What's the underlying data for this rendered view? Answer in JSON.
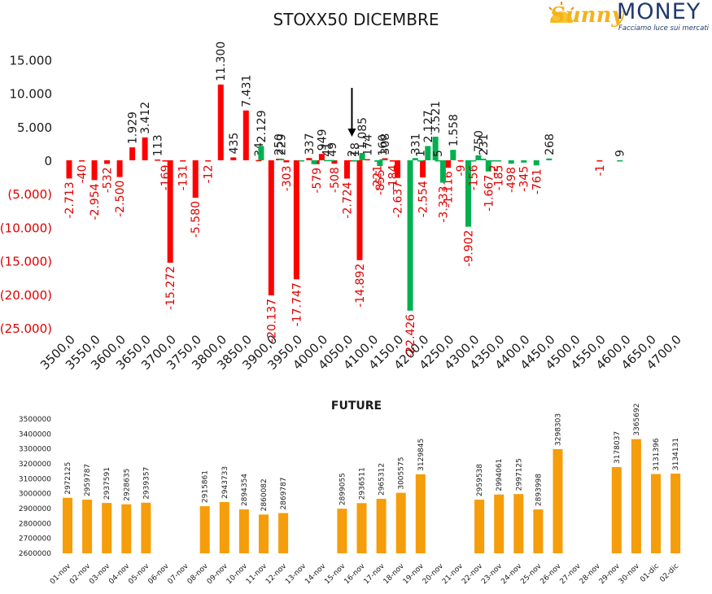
{
  "chart_data": [
    {
      "type": "bar",
      "title": "STOXX50 DICEMBRE",
      "ylim": [
        -25000,
        15000
      ],
      "y_ticks": [
        15000,
        10000,
        5000,
        0,
        -5000,
        -10000,
        -15000,
        -20000,
        -25000
      ],
      "y_tick_labels": [
        "15.000",
        "10.000",
        "5.000",
        "0",
        "(5.000)",
        "(10.000)",
        "(15.000)",
        "(20.000)",
        "(25.000)"
      ],
      "x_tick_labels": [
        "3500,0",
        "3550,0",
        "3600,0",
        "3650,0",
        "3700,0",
        "3750,0",
        "3800,0",
        "3850,0",
        "3900,0",
        "3950,0",
        "4000,0",
        "4050,0",
        "4100,0",
        "4150,0",
        "4200,0",
        "4250,0",
        "4300,0",
        "4350,0",
        "4400,0",
        "4450,0",
        "4500,0",
        "4550,0",
        "4600,0",
        "4650,0",
        "4700,0"
      ],
      "series": [
        {
          "color": "#ff0000",
          "points": [
            {
              "x": 3500,
              "value": -2713,
              "label": "-2.713"
            },
            {
              "x": 3525,
              "value": -40,
              "label": "-40"
            },
            {
              "x": 3550,
              "value": -2954,
              "label": "-2.954"
            },
            {
              "x": 3575,
              "value": -532,
              "label": "-532"
            },
            {
              "x": 3600,
              "value": -2500,
              "label": "-2.500"
            },
            {
              "x": 3625,
              "value": 1929,
              "label": "1.929"
            },
            {
              "x": 3650,
              "value": 3412,
              "label": "3.412"
            },
            {
              "x": 3675,
              "value": 113,
              "label": "113"
            },
            {
              "x": 3690,
              "value": -169,
              "label": "-169"
            },
            {
              "x": 3700,
              "value": -15272,
              "label": "-15.272"
            },
            {
              "x": 3725,
              "value": -131,
              "label": "-131"
            },
            {
              "x": 3750,
              "value": -5580,
              "label": "-5.580"
            },
            {
              "x": 3775,
              "value": -12,
              "label": "-12"
            },
            {
              "x": 3800,
              "value": 11300,
              "label": "11.300"
            },
            {
              "x": 3825,
              "value": 435,
              "label": "435"
            },
            {
              "x": 3850,
              "value": 7431,
              "label": "7.431"
            },
            {
              "x": 3875,
              "value": 34,
              "label": "34"
            },
            {
              "x": 3900,
              "value": -20137,
              "label": "-20.137"
            },
            {
              "x": 3915,
              "value": 250,
              "label": "250"
            },
            {
              "x": 3930,
              "value": -303,
              "label": "-303"
            },
            {
              "x": 3950,
              "value": -17747,
              "label": "-17.747"
            },
            {
              "x": 3975,
              "value": 337,
              "label": "337"
            },
            {
              "x": 3990,
              "value": -579,
              "label": "-579"
            },
            {
              "x": 4000,
              "value": 949,
              "label": "949"
            },
            {
              "x": 4025,
              "value": -508,
              "label": "-508"
            },
            {
              "x": 4050,
              "value": -2724,
              "label": "-2.724"
            },
            {
              "x": 4060,
              "value": 2,
              "label": "2"
            },
            {
              "x": 4075,
              "value": -14892,
              "label": "-14.892"
            },
            {
              "x": 4090,
              "value": 174,
              "label": "174"
            },
            {
              "x": 4125,
              "value": 308,
              "label": "308"
            },
            {
              "x": 4140,
              "value": -184,
              "label": "-184"
            },
            {
              "x": 4150,
              "value": -2637,
              "label": "-2.637"
            },
            {
              "x": 4200,
              "value": -2554,
              "label": "-2.554"
            },
            {
              "x": 4250,
              "value": -1116,
              "label": "-1.116"
            },
            {
              "x": 4275,
              "value": -9,
              "label": "-9"
            },
            {
              "x": 4550,
              "value": -1,
              "label": "-1"
            }
          ]
        },
        {
          "color": "#00b050",
          "points": [
            {
              "x": 3880,
              "value": 2129,
              "label": "2.129"
            },
            {
              "x": 3920,
              "value": 229,
              "label": "229"
            },
            {
              "x": 3960,
              "value": -16,
              "label": ""
            },
            {
              "x": 3985,
              "value": -579,
              "label": ""
            },
            {
              "x": 4010,
              "value": 41,
              "label": "41"
            },
            {
              "x": 4020,
              "value": 49,
              "label": "49"
            },
            {
              "x": 4065,
              "value": 18,
              "label": "18"
            },
            {
              "x": 4080,
              "value": 1085,
              "label": "1.085"
            },
            {
              "x": 4110,
              "value": -221,
              "label": "-221"
            },
            {
              "x": 4115,
              "value": -855,
              "label": "-855"
            },
            {
              "x": 4120,
              "value": 160,
              "label": "160"
            },
            {
              "x": 4175,
              "value": -22426,
              "label": "-22.426"
            },
            {
              "x": 4185,
              "value": 331,
              "label": "331"
            },
            {
              "x": 4195,
              "value": 1,
              "label": "1"
            },
            {
              "x": 4210,
              "value": 2127,
              "label": "2.127"
            },
            {
              "x": 4225,
              "value": 3521,
              "label": "3.521"
            },
            {
              "x": 4230,
              "value": 5,
              "label": "5"
            },
            {
              "x": 4240,
              "value": -3333,
              "label": "-3.333"
            },
            {
              "x": 4260,
              "value": 1558,
              "label": "1.558"
            },
            {
              "x": 4290,
              "value": -9902,
              "label": "-9.902"
            },
            {
              "x": 4300,
              "value": -156,
              "label": "-156"
            },
            {
              "x": 4310,
              "value": 750,
              "label": "750"
            },
            {
              "x": 4320,
              "value": 231,
              "label": "231"
            },
            {
              "x": 4330,
              "value": -1667,
              "label": "-1.667"
            },
            {
              "x": 4340,
              "value": -2,
              "label": "-2"
            },
            {
              "x": 4350,
              "value": -185,
              "label": "-185"
            },
            {
              "x": 4375,
              "value": -498,
              "label": "-498"
            },
            {
              "x": 4400,
              "value": -345,
              "label": "-345"
            },
            {
              "x": 4425,
              "value": -761,
              "label": "-761"
            },
            {
              "x": 4450,
              "value": 268,
              "label": "268"
            },
            {
              "x": 4590,
              "value": 9,
              "label": "9"
            }
          ]
        }
      ],
      "annotation": {
        "type": "arrow-down",
        "x": 4050
      }
    },
    {
      "type": "bar",
      "title": "FUTURE",
      "ylim": [
        2600000,
        3500000
      ],
      "y_ticks": [
        3500000,
        3400000,
        3300000,
        3200000,
        3100000,
        3000000,
        2900000,
        2800000,
        2700000,
        2600000
      ],
      "y_tick_labels": [
        "3500000",
        "3400000",
        "3300000",
        "3200000",
        "3100000",
        "3000000",
        "2900000",
        "2800000",
        "2700000",
        "2600000"
      ],
      "categories": [
        "01-nov",
        "02-nov",
        "03-nov",
        "04-nov",
        "05-nov",
        "06-nov",
        "07-nov",
        "08-nov",
        "09-nov",
        "10-nov",
        "11-nov",
        "12-nov",
        "13-nov",
        "14-nov",
        "15-nov",
        "16-nov",
        "17-nov",
        "18-nov",
        "19-nov",
        "20-nov",
        "21-nov",
        "22-nov",
        "23-nov",
        "24-nov",
        "25-nov",
        "26-nov",
        "27-nov",
        "28-nov",
        "29-nov",
        "30-nov",
        "01-dic",
        "02-dic"
      ],
      "values": [
        2972125,
        2959787,
        2937591,
        2928635,
        2939357,
        null,
        null,
        2915861,
        2943733,
        2894354,
        2860082,
        2869787,
        null,
        null,
        2899055,
        2936511,
        2965312,
        3005575,
        3129845,
        null,
        null,
        2959538,
        2994061,
        2997125,
        2893998,
        3298303,
        null,
        null,
        3178037,
        3365692,
        3131396,
        3134131
      ],
      "color": "#f59d0a"
    }
  ],
  "logo": {
    "sunny": "Sunny",
    "money": "MONEY",
    "tagline": "Facciamo luce sui mercati"
  }
}
